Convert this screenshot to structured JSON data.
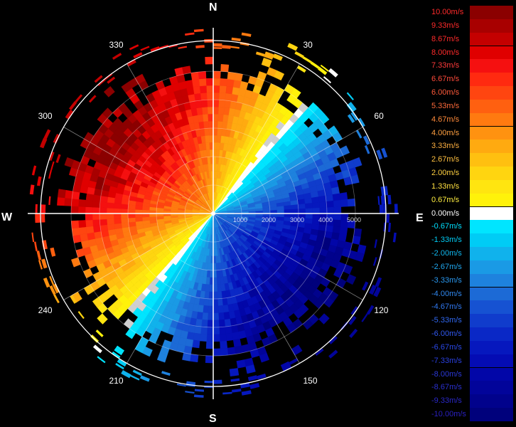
{
  "chart_data": {
    "type": "heatmap",
    "subtype": "polar-ppi-doppler-velocity",
    "cardinals": {
      "north": "N",
      "east": "E",
      "south": "S",
      "west": "W"
    },
    "azimuth_labels": [
      "30",
      "60",
      "120",
      "150",
      "210",
      "240",
      "300",
      "330"
    ],
    "azimuth_label_degrees": [
      30,
      60,
      120,
      150,
      210,
      240,
      300,
      330
    ],
    "range_ticks": [
      "1000",
      "2000",
      "3000",
      "4000",
      "5000"
    ],
    "range_max": 5000,
    "zero_isodop_azimuth_deg": 40,
    "max_inbound_azimuth_deg": 130,
    "max_outbound_azimuth_deg": 310,
    "colorbar": [
      {
        "label": "10.00m/s",
        "color": "#8b0000",
        "label_color": "#ff2a2a"
      },
      {
        "label": "9.33m/s",
        "color": "#a80000",
        "label_color": "#ff2a2a"
      },
      {
        "label": "8.67m/s",
        "color": "#c40000",
        "label_color": "#ff2a2a"
      },
      {
        "label": "8.00m/s",
        "color": "#e00000",
        "label_color": "#ff2a2a"
      },
      {
        "label": "7.33m/s",
        "color": "#f51010",
        "label_color": "#ff3a3a"
      },
      {
        "label": "6.67m/s",
        "color": "#ff2a10",
        "label_color": "#ff4a3a"
      },
      {
        "label": "6.00m/s",
        "color": "#ff4510",
        "label_color": "#ff5a3a"
      },
      {
        "label": "5.33m/s",
        "color": "#ff6010",
        "label_color": "#ff6a3a"
      },
      {
        "label": "4.67m/s",
        "color": "#ff7a10",
        "label_color": "#ff8a3a"
      },
      {
        "label": "4.00m/s",
        "color": "#ff9210",
        "label_color": "#ffa040"
      },
      {
        "label": "3.33m/s",
        "color": "#ffaa10",
        "label_color": "#ffb040"
      },
      {
        "label": "2.67m/s",
        "color": "#ffc010",
        "label_color": "#ffc040"
      },
      {
        "label": "2.00m/s",
        "color": "#ffd510",
        "label_color": "#ffd040"
      },
      {
        "label": "1.33m/s",
        "color": "#ffe510",
        "label_color": "#ffe040"
      },
      {
        "label": "0.67m/s",
        "color": "#fff20a",
        "label_color": "#ffee40"
      },
      {
        "label": "0.00m/s",
        "color": "#ffffff",
        "label_color": "#ffffff"
      },
      {
        "label": "-0.67m/s",
        "color": "#00e5ff",
        "label_color": "#00e0ff"
      },
      {
        "label": "-1.33m/s",
        "color": "#00ccf5",
        "label_color": "#00ccf5"
      },
      {
        "label": "-2.00m/s",
        "color": "#10b2ec",
        "label_color": "#10b8f0"
      },
      {
        "label": "-2.67m/s",
        "color": "#1a9ae5",
        "label_color": "#20a8f0"
      },
      {
        "label": "-3.33m/s",
        "color": "#1e82de",
        "label_color": "#2a98f0"
      },
      {
        "label": "-4.00m/s",
        "color": "#1c6ad6",
        "label_color": "#3088f0"
      },
      {
        "label": "-4.67m/s",
        "color": "#1652d2",
        "label_color": "#3078f0"
      },
      {
        "label": "-5.33m/s",
        "color": "#103ccc",
        "label_color": "#3068f0"
      },
      {
        "label": "-6.00m/s",
        "color": "#0a28c6",
        "label_color": "#3058f0"
      },
      {
        "label": "-6.67m/s",
        "color": "#0618be",
        "label_color": "#2a48e8"
      },
      {
        "label": "-7.33m/s",
        "color": "#040cb4",
        "label_color": "#2a40e0"
      },
      {
        "label": "-8.00m/s",
        "color": "#0206a8",
        "label_color": "#2a38d8"
      },
      {
        "label": "-8.67m/s",
        "color": "#02049a",
        "label_color": "#2a30d0"
      },
      {
        "label": "-9.33m/s",
        "color": "#01028c",
        "label_color": "#2a28c8"
      },
      {
        "label": "-10.00m/s",
        "color": "#00017c",
        "label_color": "#2a20c0"
      }
    ]
  }
}
